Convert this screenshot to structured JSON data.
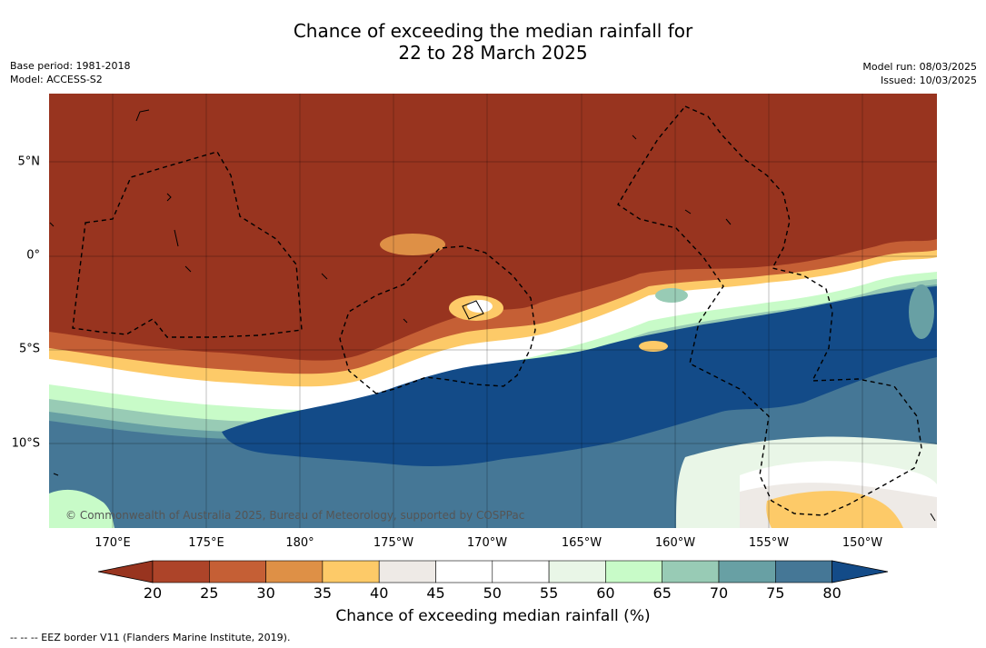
{
  "title": {
    "line1": "Chance of exceeding the median rainfall for",
    "line2": "22 to 28 March 2025"
  },
  "meta": {
    "base_period": "Base period: 1981-2018",
    "model": "Model: ACCESS-S2",
    "model_run": "Model run: 08/03/2025",
    "issued": "Issued: 10/03/2025"
  },
  "map": {
    "copyright": "© Commonwealth of Australia 2025, Bureau of Meteorology, supported by COSPPac",
    "lon_labels": [
      "170°E",
      "175°E",
      "180°",
      "175°W",
      "170°W",
      "165°W",
      "160°W",
      "155°W",
      "150°W"
    ],
    "lat_labels": [
      "5°N",
      "0°",
      "5°S",
      "10°S"
    ]
  },
  "colorbar": {
    "ticks": [
      "20",
      "25",
      "30",
      "35",
      "40",
      "45",
      "50",
      "55",
      "60",
      "65",
      "70",
      "75",
      "80"
    ],
    "colors": [
      "#98341f",
      "#ad4429",
      "#c55f35",
      "#de9046",
      "#fdca68",
      "#eeeae6",
      "#ffffff",
      "#ffffff",
      "#e9f6e7",
      "#c8fbc8",
      "#98cbb5",
      "#68a0a4",
      "#457796",
      "#134b88"
    ],
    "label": "Chance of exceeding median rainfall (%)"
  },
  "footnote": "--  --  -- EEZ border V11 (Flanders Marine Institute, 2019)."
}
